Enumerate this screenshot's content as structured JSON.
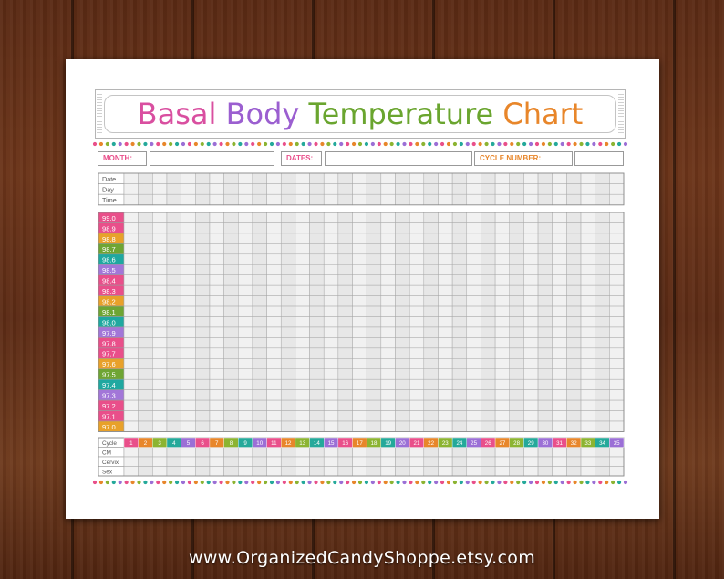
{
  "title": {
    "words": [
      {
        "text": "Basal",
        "color": "#d94fa0"
      },
      {
        "text": "Body",
        "color": "#9b5fd0"
      },
      {
        "text": "Temperature",
        "color": "#6aa52f"
      },
      {
        "text": "Chart",
        "color": "#e8862a"
      }
    ]
  },
  "info": {
    "month_label": "MONTH:",
    "dates_label": "DATES:",
    "cycle_label": "CYCLE NUMBER:"
  },
  "header_rows": [
    "Date",
    "Day",
    "Time"
  ],
  "temperatures": [
    "99.0",
    "98.9",
    "98.8",
    "98.7",
    "98.6",
    "98.5",
    "98.4",
    "98.3",
    "98.2",
    "98.1",
    "98.0",
    "97.9",
    "97.8",
    "97.7",
    "97.6",
    "97.5",
    "97.4",
    "97.3",
    "97.2",
    "97.1",
    "97.0"
  ],
  "bottom_rows": [
    "Cycle",
    "CM",
    "Cervix",
    "Sex"
  ],
  "cycle_days": [
    "1",
    "2",
    "3",
    "4",
    "5",
    "6",
    "7",
    "8",
    "9",
    "10",
    "11",
    "12",
    "13",
    "14",
    "15",
    "16",
    "17",
    "18",
    "19",
    "20",
    "21",
    "22",
    "23",
    "24",
    "25",
    "26",
    "27",
    "28",
    "29",
    "30",
    "31",
    "32",
    "33",
    "34",
    "35"
  ],
  "palette": [
    "#e94f8a",
    "#e8862a",
    "#8cb431",
    "#24a99a",
    "#9b6fd6"
  ],
  "temp_palette": [
    "#e94f8a",
    "#e94f8a",
    "#e8a12a",
    "#6ea533",
    "#1fa8a0",
    "#a276d8",
    "#e94f8a",
    "#e94f8a",
    "#e8a12a",
    "#6ea533",
    "#1fa8a0",
    "#a276d8",
    "#e94f8a",
    "#e94f8a",
    "#e8a12a",
    "#6ea533",
    "#1fa8a0",
    "#a276d8",
    "#e94f8a",
    "#e94f8a",
    "#e8a12a"
  ],
  "footer": {
    "url": "www.OrganizedCandyShoppe.etsy.com"
  }
}
